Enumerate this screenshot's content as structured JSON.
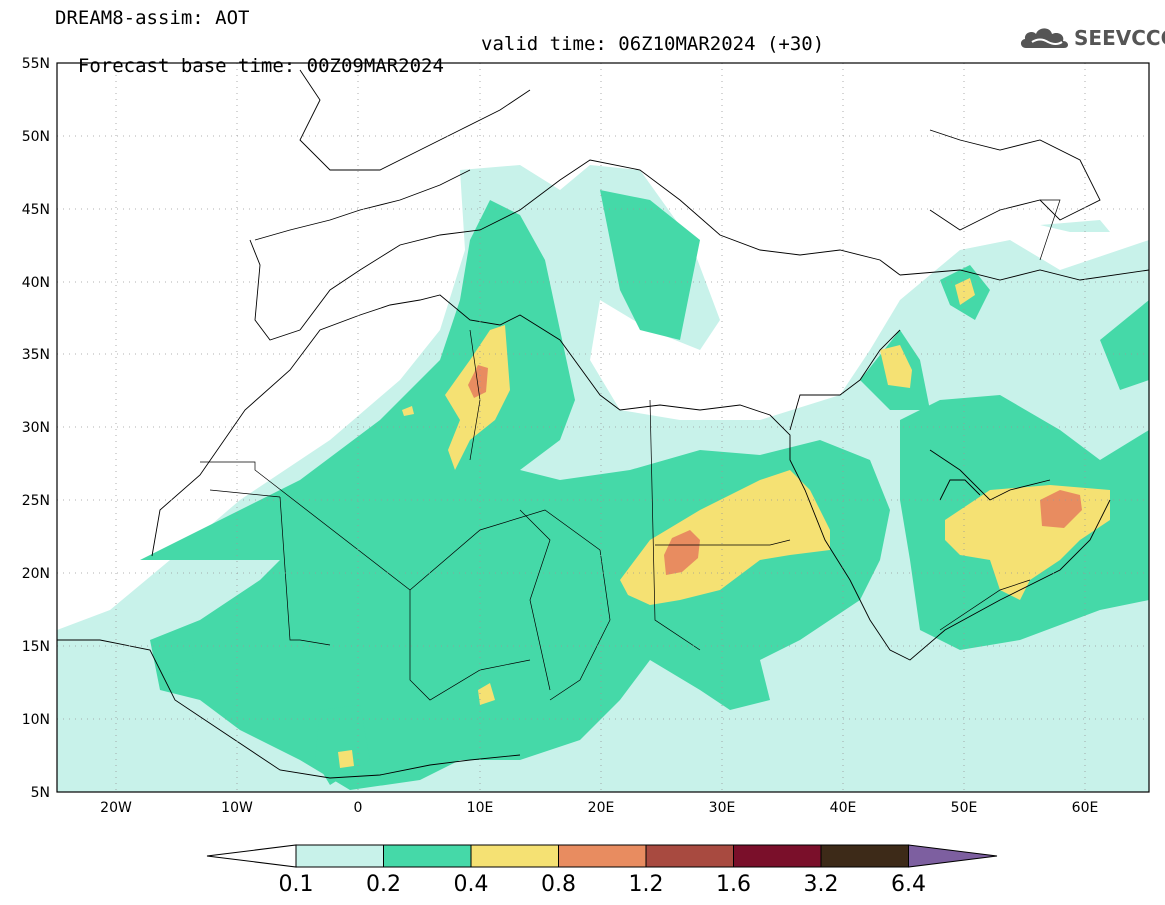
{
  "header": {
    "line1": "DREAM8-assim: AOT",
    "line2_base": "Forecast base time: 00Z09MAR2024",
    "line2_valid": "valid time: 06Z10MAR2024 (+30)"
  },
  "logo": {
    "text": "SEEVCCC"
  },
  "map": {
    "projection": "lat-lon",
    "lon_range": [
      -25,
      65
    ],
    "lat_range": [
      5,
      55
    ],
    "lat_ticks": [
      "5N",
      "10N",
      "15N",
      "20N",
      "25N",
      "30N",
      "35N",
      "40N",
      "45N",
      "50N",
      "55N"
    ],
    "lon_ticks": [
      "20W",
      "10W",
      "0",
      "10E",
      "20E",
      "30E",
      "40E",
      "50E",
      "60E"
    ],
    "variable": "aerosol optical thickness"
  },
  "colorbar": {
    "labels": [
      "0.1",
      "0.2",
      "0.4",
      "0.8",
      "1.2",
      "1.6",
      "3.2",
      "6.4"
    ],
    "colors": [
      "#c8f2ea",
      "#45d9a8",
      "#f5e173",
      "#e88c60",
      "#a84a40",
      "#7a0f2a",
      "#3d2a18",
      "#7d5fa0"
    ]
  }
}
